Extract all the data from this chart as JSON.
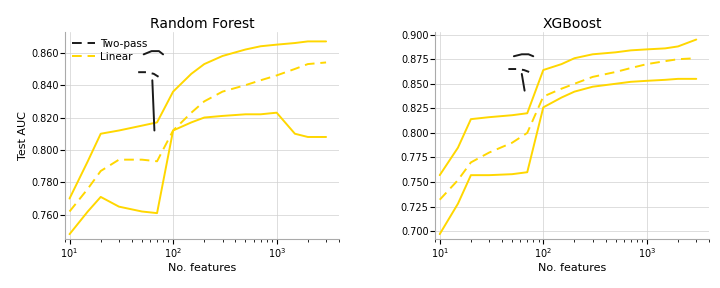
{
  "rf_x": [
    10,
    15,
    20,
    30,
    50,
    70,
    100,
    150,
    200,
    300,
    500,
    700,
    1000,
    1500,
    2000,
    3000
  ],
  "rf_solid_upper": [
    0.77,
    0.793,
    0.81,
    0.812,
    0.815,
    0.817,
    0.836,
    0.847,
    0.853,
    0.858,
    0.862,
    0.864,
    0.865,
    0.866,
    0.867,
    0.867
  ],
  "rf_solid_lower": [
    0.748,
    0.762,
    0.771,
    0.765,
    0.762,
    0.761,
    0.812,
    0.817,
    0.82,
    0.821,
    0.822,
    0.822,
    0.823,
    0.81,
    0.808,
    0.808
  ],
  "rf_dashed": [
    0.762,
    0.776,
    0.787,
    0.794,
    0.794,
    0.793,
    0.812,
    0.823,
    0.83,
    0.836,
    0.84,
    0.843,
    0.846,
    0.85,
    0.853,
    0.854
  ],
  "xgb_x": [
    10,
    15,
    20,
    30,
    50,
    70,
    100,
    150,
    200,
    300,
    500,
    700,
    1000,
    1500,
    2000,
    3000
  ],
  "xgb_solid_upper": [
    0.757,
    0.785,
    0.814,
    0.816,
    0.818,
    0.82,
    0.864,
    0.87,
    0.876,
    0.88,
    0.882,
    0.884,
    0.885,
    0.886,
    0.888,
    0.895
  ],
  "xgb_solid_lower": [
    0.697,
    0.728,
    0.757,
    0.757,
    0.758,
    0.76,
    0.826,
    0.836,
    0.842,
    0.847,
    0.85,
    0.852,
    0.853,
    0.854,
    0.855,
    0.855
  ],
  "xgb_dashed": [
    0.732,
    0.752,
    0.77,
    0.78,
    0.79,
    0.8,
    0.837,
    0.845,
    0.85,
    0.857,
    0.862,
    0.866,
    0.87,
    0.873,
    0.875,
    0.876
  ],
  "rf_ylim": [
    0.745,
    0.873
  ],
  "xgb_ylim": [
    0.692,
    0.903
  ],
  "rf_yticks": [
    0.76,
    0.78,
    0.8,
    0.82,
    0.84,
    0.86
  ],
  "xgb_yticks": [
    0.7,
    0.725,
    0.75,
    0.775,
    0.8,
    0.825,
    0.85,
    0.875,
    0.9
  ],
  "line_color_yellow": "#FFD700",
  "line_color_black": "#1a1a1a",
  "title_rf": "Random Forest",
  "title_xgb": "XGBoost",
  "xlabel": "No. features",
  "ylabel": "Test AUC",
  "legend_twopass": "Two-pass",
  "legend_linear": "Linear"
}
